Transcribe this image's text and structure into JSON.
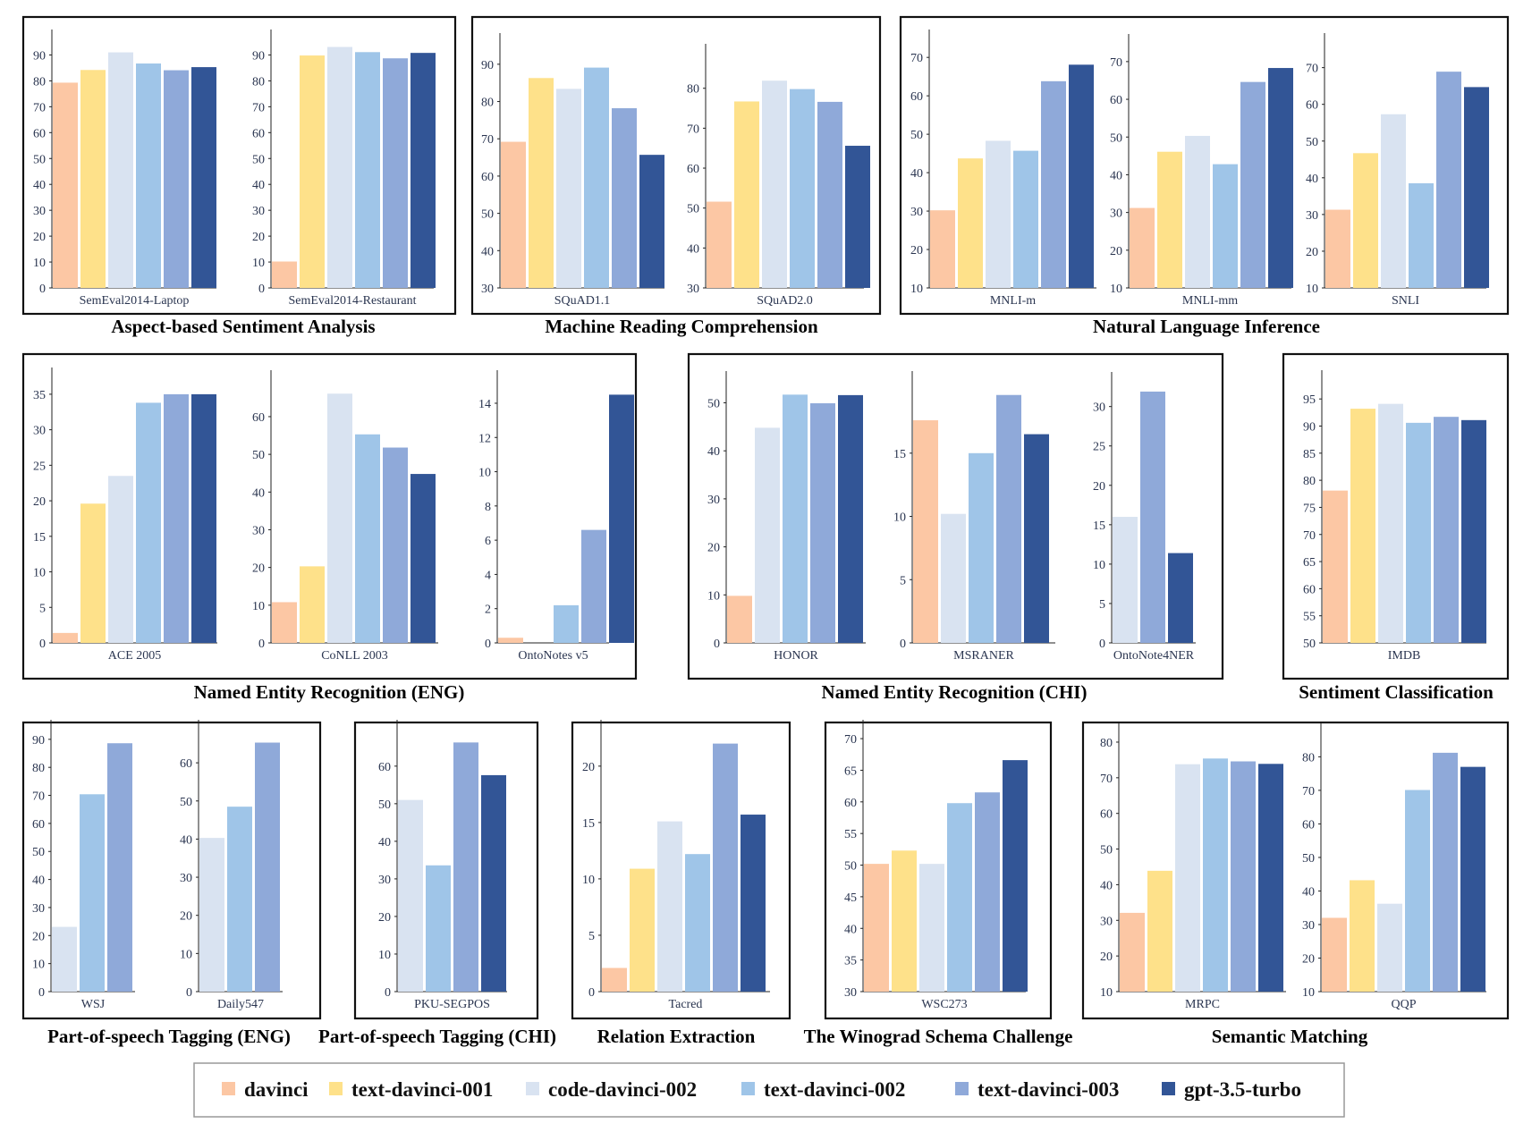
{
  "colors": {
    "davinci": "#fcc7a4",
    "text-davinci-001": "#fee18a",
    "code-davinci-002": "#d9e3f1",
    "text-davinci-002": "#9fc5e8",
    "text-davinci-003": "#8fa9d9",
    "gpt-3.5-turbo": "#325596"
  },
  "legend": {
    "items": [
      {
        "key": "davinci",
        "label": "davinci"
      },
      {
        "key": "text-davinci-001",
        "label": "text-davinci-001"
      },
      {
        "key": "code-davinci-002",
        "label": "code-davinci-002"
      },
      {
        "key": "text-davinci-002",
        "label": "text-davinci-002"
      },
      {
        "key": "text-davinci-003",
        "label": "text-davinci-003"
      },
      {
        "key": "gpt-3.5-turbo",
        "label": "gpt-3.5-turbo"
      }
    ]
  },
  "chart_data": [
    {
      "type": "bar",
      "group": "Aspect-based Sentiment Analysis",
      "xlabel": "SemEval2014-Laptop",
      "ylim": [
        0,
        95
      ],
      "yticks": [
        0,
        10,
        20,
        30,
        40,
        50,
        60,
        70,
        80,
        90
      ],
      "series": [
        {
          "name": "davinci",
          "value": 79.3
        },
        {
          "name": "text-davinci-001",
          "value": 84.2
        },
        {
          "name": "code-davinci-002",
          "value": 91.0
        },
        {
          "name": "text-davinci-002",
          "value": 86.7
        },
        {
          "name": "text-davinci-003",
          "value": 84.1
        },
        {
          "name": "gpt-3.5-turbo",
          "value": 85.3
        }
      ]
    },
    {
      "type": "bar",
      "group": "Aspect-based Sentiment Analysis",
      "xlabel": "SemEval2014-Restaurant",
      "ylim": [
        0,
        95
      ],
      "yticks": [
        0,
        10,
        20,
        30,
        40,
        50,
        60,
        70,
        80,
        90
      ],
      "series": [
        {
          "name": "davinci",
          "value": 10.2
        },
        {
          "name": "text-davinci-001",
          "value": 89.8
        },
        {
          "name": "code-davinci-002",
          "value": 93.1
        },
        {
          "name": "text-davinci-002",
          "value": 91.1
        },
        {
          "name": "text-davinci-003",
          "value": 88.7
        },
        {
          "name": "gpt-3.5-turbo",
          "value": 90.8
        }
      ]
    },
    {
      "type": "bar",
      "group": "Machine Reading Comprehension",
      "xlabel": "SQuAD1.1",
      "ylim": [
        30,
        95
      ],
      "yticks": [
        30,
        40,
        50,
        60,
        70,
        80,
        90
      ],
      "series": [
        {
          "name": "davinci",
          "value": 69.2
        },
        {
          "name": "text-davinci-001",
          "value": 86.3
        },
        {
          "name": "code-davinci-002",
          "value": 83.4
        },
        {
          "name": "text-davinci-002",
          "value": 89.1
        },
        {
          "name": "text-davinci-003",
          "value": 78.2
        },
        {
          "name": "gpt-3.5-turbo",
          "value": 65.7
        }
      ]
    },
    {
      "type": "bar",
      "group": "Machine Reading Comprehension",
      "xlabel": "SQuAD2.0",
      "ylim": [
        30,
        88
      ],
      "yticks": [
        30,
        40,
        50,
        60,
        70,
        80
      ],
      "series": [
        {
          "name": "davinci",
          "value": 51.6
        },
        {
          "name": "text-davinci-001",
          "value": 76.7
        },
        {
          "name": "code-davinci-002",
          "value": 81.9
        },
        {
          "name": "text-davinci-002",
          "value": 79.8
        },
        {
          "name": "text-davinci-003",
          "value": 76.6
        },
        {
          "name": "gpt-3.5-turbo",
          "value": 65.6
        }
      ]
    },
    {
      "type": "bar",
      "group": "Natural Language Inference",
      "xlabel": "MNLI-m",
      "ylim": [
        10,
        74
      ],
      "yticks": [
        10,
        20,
        30,
        40,
        50,
        60,
        70
      ],
      "series": [
        {
          "name": "davinci",
          "value": 30.2
        },
        {
          "name": "text-davinci-001",
          "value": 43.7
        },
        {
          "name": "code-davinci-002",
          "value": 48.3
        },
        {
          "name": "text-davinci-002",
          "value": 45.7
        },
        {
          "name": "text-davinci-003",
          "value": 63.8
        },
        {
          "name": "gpt-3.5-turbo",
          "value": 68.1
        }
      ]
    },
    {
      "type": "bar",
      "group": "Natural Language Inference",
      "xlabel": "MNLI-mm",
      "ylim": [
        10,
        74
      ],
      "yticks": [
        10,
        20,
        30,
        40,
        50,
        60,
        70
      ],
      "series": [
        {
          "name": "davinci",
          "value": 31.2
        },
        {
          "name": "text-davinci-001",
          "value": 46.1
        },
        {
          "name": "code-davinci-002",
          "value": 50.3
        },
        {
          "name": "text-davinci-002",
          "value": 42.8
        },
        {
          "name": "text-davinci-003",
          "value": 64.6
        },
        {
          "name": "gpt-3.5-turbo",
          "value": 68.3
        }
      ]
    },
    {
      "type": "bar",
      "group": "Natural Language Inference",
      "xlabel": "SNLI",
      "ylim": [
        10,
        76
      ],
      "yticks": [
        10,
        20,
        30,
        40,
        50,
        60,
        70
      ],
      "series": [
        {
          "name": "davinci",
          "value": 31.3
        },
        {
          "name": "text-davinci-001",
          "value": 46.7
        },
        {
          "name": "code-davinci-002",
          "value": 57.3
        },
        {
          "name": "text-davinci-002",
          "value": 38.5
        },
        {
          "name": "text-davinci-003",
          "value": 68.9
        },
        {
          "name": "gpt-3.5-turbo",
          "value": 64.7
        }
      ]
    },
    {
      "type": "bar",
      "group": "Named Entity Recognition (ENG)",
      "xlabel": "ACE 2005",
      "ylim": [
        0,
        37
      ],
      "yticks": [
        0,
        5,
        10,
        15,
        20,
        25,
        30,
        35
      ],
      "series": [
        {
          "name": "davinci",
          "value": 1.4
        },
        {
          "name": "text-davinci-001",
          "value": 19.6
        },
        {
          "name": "code-davinci-002",
          "value": 23.5
        },
        {
          "name": "text-davinci-002",
          "value": 33.8
        },
        {
          "name": "text-davinci-003",
          "value": 35.0
        },
        {
          "name": "gpt-3.5-turbo",
          "value": 35.0
        }
      ]
    },
    {
      "type": "bar",
      "group": "Named Entity Recognition (ENG)",
      "xlabel": "CoNLL 2003",
      "ylim": [
        0,
        69
      ],
      "yticks": [
        0,
        10,
        20,
        30,
        40,
        50,
        60
      ],
      "series": [
        {
          "name": "davinci",
          "value": 10.8
        },
        {
          "name": "text-davinci-001",
          "value": 20.3
        },
        {
          "name": "code-davinci-002",
          "value": 66.1
        },
        {
          "name": "text-davinci-002",
          "value": 55.3
        },
        {
          "name": "text-davinci-003",
          "value": 51.8
        },
        {
          "name": "gpt-3.5-turbo",
          "value": 44.8
        }
      ]
    },
    {
      "type": "bar",
      "group": "Named Entity Recognition (ENG)",
      "xlabel": "OntoNotes v5",
      "ylim": [
        0,
        15.2
      ],
      "yticks": [
        0,
        2,
        4,
        6,
        8,
        10,
        12,
        14
      ],
      "series": [
        {
          "name": "davinci",
          "value": 0.3
        },
        {
          "name": "code-davinci-002",
          "value": 0
        },
        {
          "name": "text-davinci-002",
          "value": 2.2
        },
        {
          "name": "text-davinci-003",
          "value": 6.6
        },
        {
          "name": "gpt-3.5-turbo",
          "value": 14.5
        }
      ]
    },
    {
      "type": "bar",
      "group": "Named Entity Recognition (CHI)",
      "xlabel": "HONOR",
      "ylim": [
        0,
        54
      ],
      "yticks": [
        0,
        10,
        20,
        30,
        40,
        50
      ],
      "series": [
        {
          "name": "davinci",
          "value": 9.8
        },
        {
          "name": "code-davinci-002",
          "value": 44.8
        },
        {
          "name": "text-davinci-002",
          "value": 51.7
        },
        {
          "name": "text-davinci-003",
          "value": 49.9
        },
        {
          "name": "gpt-3.5-turbo",
          "value": 51.6
        }
      ]
    },
    {
      "type": "bar",
      "group": "Named Entity Recognition (CHI)",
      "xlabel": "MSRANER",
      "ylim": [
        0,
        20.5
      ],
      "yticks": [
        0,
        5,
        10,
        15
      ],
      "series": [
        {
          "name": "davinci",
          "value": 17.6
        },
        {
          "name": "code-davinci-002",
          "value": 10.2
        },
        {
          "name": "text-davinci-002",
          "value": 15.0
        },
        {
          "name": "text-davinci-003",
          "value": 19.6
        },
        {
          "name": "gpt-3.5-turbo",
          "value": 16.5
        }
      ]
    },
    {
      "type": "bar",
      "group": "Named Entity Recognition (CHI)",
      "xlabel": "OntoNote4NER",
      "ylim": [
        0,
        32.8
      ],
      "yticks": [
        0,
        5,
        10,
        15,
        20,
        25,
        30
      ],
      "series": [
        {
          "name": "code-davinci-002",
          "value": 16.0
        },
        {
          "name": "text-davinci-003",
          "value": 31.9
        },
        {
          "name": "gpt-3.5-turbo",
          "value": 11.4
        }
      ]
    },
    {
      "type": "bar",
      "group": "Sentiment Classification",
      "xlabel": "IMDB",
      "ylim": [
        50,
        98
      ],
      "yticks": [
        50,
        55,
        60,
        65,
        70,
        75,
        80,
        85,
        90,
        95
      ],
      "series": [
        {
          "name": "davinci",
          "value": 78.1
        },
        {
          "name": "text-davinci-001",
          "value": 93.2
        },
        {
          "name": "code-davinci-002",
          "value": 94.1
        },
        {
          "name": "text-davinci-002",
          "value": 90.6
        },
        {
          "name": "text-davinci-003",
          "value": 91.7
        },
        {
          "name": "gpt-3.5-turbo",
          "value": 91.1
        }
      ]
    },
    {
      "type": "bar",
      "group": "Part-of-speech Tagging (ENG)",
      "xlabel": "WSJ",
      "ylim": [
        0,
        92.5
      ],
      "yticks": [
        0,
        10,
        20,
        30,
        40,
        50,
        60,
        70,
        80,
        90
      ],
      "series": [
        {
          "name": "code-davinci-002",
          "value": 23.1
        },
        {
          "name": "text-davinci-002",
          "value": 70.4
        },
        {
          "name": "text-davinci-003",
          "value": 88.6
        }
      ]
    },
    {
      "type": "bar",
      "group": "Part-of-speech Tagging (ENG)",
      "xlabel": "Daily547",
      "ylim": [
        0,
        68
      ],
      "yticks": [
        0,
        10,
        20,
        30,
        40,
        50,
        60
      ],
      "series": [
        {
          "name": "code-davinci-002",
          "value": 40.3
        },
        {
          "name": "text-davinci-002",
          "value": 48.5
        },
        {
          "name": "text-davinci-003",
          "value": 65.3
        }
      ]
    },
    {
      "type": "bar",
      "group": "Part-of-speech Tagging (CHI)",
      "xlabel": "PKU-SEGPOS",
      "ylim": [
        0,
        69
      ],
      "yticks": [
        0,
        10,
        20,
        30,
        40,
        50,
        60
      ],
      "series": [
        {
          "name": "code-davinci-002",
          "value": 51.0
        },
        {
          "name": "text-davinci-002",
          "value": 33.6
        },
        {
          "name": "text-davinci-003",
          "value": 66.3
        },
        {
          "name": "gpt-3.5-turbo",
          "value": 57.6
        }
      ]
    },
    {
      "type": "bar",
      "group": "Relation Extraction",
      "xlabel": "Tacred",
      "ylim": [
        0,
        23
      ],
      "yticks": [
        0,
        5,
        10,
        15,
        20
      ],
      "series": [
        {
          "name": "davinci",
          "value": 2.1
        },
        {
          "name": "text-davinci-001",
          "value": 10.9
        },
        {
          "name": "code-davinci-002",
          "value": 15.1
        },
        {
          "name": "text-davinci-002",
          "value": 12.2
        },
        {
          "name": "text-davinci-003",
          "value": 22.0
        },
        {
          "name": "gpt-3.5-turbo",
          "value": 15.7
        }
      ]
    },
    {
      "type": "bar",
      "group": "The Winograd Schema Challenge",
      "xlabel": "WSC273",
      "ylim": [
        30,
        71
      ],
      "yticks": [
        30,
        35,
        40,
        45,
        50,
        55,
        60,
        65,
        70
      ],
      "series": [
        {
          "name": "davinci",
          "value": 50.2
        },
        {
          "name": "text-davinci-001",
          "value": 52.3
        },
        {
          "name": "code-davinci-002",
          "value": 50.2
        },
        {
          "name": "text-davinci-002",
          "value": 59.8
        },
        {
          "name": "text-davinci-003",
          "value": 61.5
        },
        {
          "name": "gpt-3.5-turbo",
          "value": 66.6
        }
      ]
    },
    {
      "type": "bar",
      "group": "Semantic Matching",
      "xlabel": "MRPC",
      "ylim": [
        10,
        82
      ],
      "yticks": [
        10,
        20,
        30,
        40,
        50,
        60,
        70,
        80
      ],
      "series": [
        {
          "name": "davinci",
          "value": 32.1
        },
        {
          "name": "text-davinci-001",
          "value": 43.9
        },
        {
          "name": "code-davinci-002",
          "value": 73.8
        },
        {
          "name": "text-davinci-002",
          "value": 75.4
        },
        {
          "name": "text-davinci-003",
          "value": 74.6
        },
        {
          "name": "gpt-3.5-turbo",
          "value": 73.9
        }
      ]
    },
    {
      "type": "bar",
      "group": "Semantic Matching",
      "xlabel": "QQP",
      "ylim": [
        10,
        86.5
      ],
      "yticks": [
        10,
        20,
        30,
        40,
        50,
        60,
        70,
        80
      ],
      "series": [
        {
          "name": "davinci",
          "value": 32.0
        },
        {
          "name": "text-davinci-001",
          "value": 43.2
        },
        {
          "name": "code-davinci-002",
          "value": 36.2
        },
        {
          "name": "text-davinci-002",
          "value": 70.1
        },
        {
          "name": "text-davinci-003",
          "value": 81.2
        },
        {
          "name": "gpt-3.5-turbo",
          "value": 77.0
        }
      ]
    }
  ],
  "groups": [
    {
      "title": "Aspect-based Sentiment Analysis"
    },
    {
      "title": "Machine Reading Comprehension"
    },
    {
      "title": "Natural Language Inference"
    },
    {
      "title": "Named Entity Recognition (ENG)"
    },
    {
      "title": "Named Entity Recognition (CHI)"
    },
    {
      "title": "Sentiment Classification"
    },
    {
      "title": "Part-of-speech Tagging (ENG)"
    },
    {
      "title": "Part-of-speech Tagging (CHI)"
    },
    {
      "title": "Relation Extraction"
    },
    {
      "title": "The Winograd Schema Challenge"
    },
    {
      "title": "Semantic Matching"
    }
  ]
}
